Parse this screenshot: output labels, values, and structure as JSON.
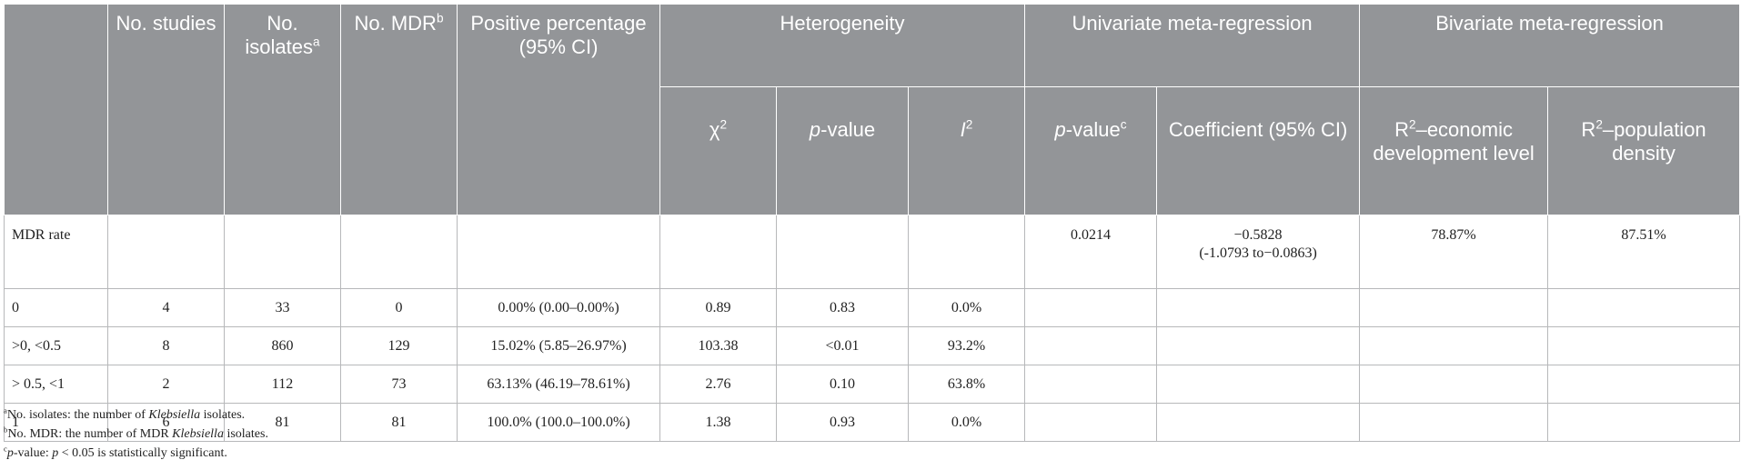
{
  "headers": {
    "no_studies": "No. studies",
    "no_isolates": "No. isolates",
    "no_isolates_sup": "a",
    "no_mdr": "No. MDR",
    "no_mdr_sup": "b",
    "positive_percentage": "Positive percentage (95% CI)",
    "heterogeneity": "Heterogeneity",
    "chi2": "χ",
    "chi2_sup": "2",
    "p_value": "p",
    "p_value_rest": "-value",
    "i2": "I",
    "i2_sup": "2",
    "univariate": "Univariate meta-regression",
    "uni_p": "p",
    "uni_p_rest": "-value",
    "uni_p_sup": "c",
    "coefficient": "Coefficient (95% CI)",
    "bivariate": "Bivariate meta-regression",
    "r2_prefix": "R",
    "r2_sup": "2",
    "r2_econ": "–economic development level",
    "r2_pop": "–population density"
  },
  "mdr_rate": {
    "label": "MDR rate",
    "uni_p": "0.0214",
    "coef_line1": "−0.5828",
    "coef_line2": "(-1.0793 to−0.0863)",
    "r2_econ": "78.87%",
    "r2_pop": "87.51%"
  },
  "rows": [
    {
      "label": "0",
      "studies": "4",
      "isolates": "33",
      "mdr": "0",
      "pct": "0.00% (0.00–0.00%)",
      "chi2": "0.89",
      "p": "0.83",
      "i2": "0.0%"
    },
    {
      "label": ">0, <0.5",
      "studies": "8",
      "isolates": "860",
      "mdr": "129",
      "pct": "15.02% (5.85–26.97%)",
      "chi2": "103.38",
      "p": "<0.01",
      "i2": "93.2%"
    },
    {
      "label": "> 0.5, <1",
      "studies": "2",
      "isolates": "112",
      "mdr": "73",
      "pct": "63.13% (46.19–78.61%)",
      "chi2": "2.76",
      "p": "0.10",
      "i2": "63.8%"
    },
    {
      "label": "1",
      "studies": "6",
      "isolates": "81",
      "mdr": "81",
      "pct": "100.0% (100.0–100.0%)",
      "chi2": "1.38",
      "p": "0.93",
      "i2": "0.0%"
    }
  ],
  "footnotes": {
    "a_sup": "a",
    "a_text": "No. isolates: the number of ",
    "a_em": "Klebsiella",
    "a_end": " isolates.",
    "b_sup": "b",
    "b_text": "No. MDR: the number of MDR ",
    "b_em": "Klebsiella",
    "b_end": " isolates.",
    "c_sup": "c",
    "c_em": "p",
    "c_text": "-value: ",
    "c_em2": "p",
    "c_end": " < 0.05 is statistically significant."
  }
}
